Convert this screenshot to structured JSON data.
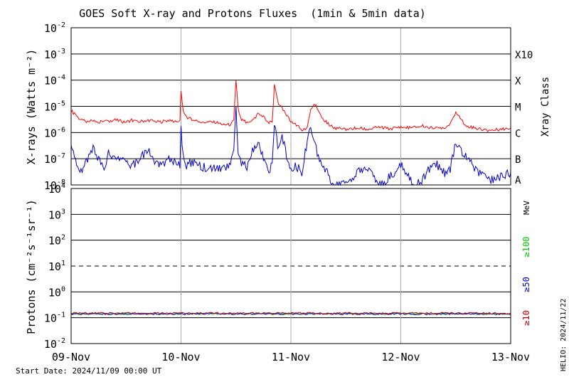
{
  "chart_data": [
    {
      "panel": "xray",
      "type": "line",
      "title": "GOES Soft X-ray and Protons Fluxes  (1min & 5min data)",
      "ylabel": "X-rays (Watts m⁻²)",
      "yscale": "log",
      "ylim": [
        1e-08,
        0.01
      ],
      "ytick_labels": [
        {
          "base": "10",
          "exp": "-2",
          "value": 0.01
        },
        {
          "base": "10",
          "exp": "-3",
          "value": 0.001
        },
        {
          "base": "10",
          "exp": "-4",
          "value": 0.0001
        },
        {
          "base": "10",
          "exp": "-5",
          "value": 1e-05
        },
        {
          "base": "10",
          "exp": "-6",
          "value": 1e-06
        },
        {
          "base": "10",
          "exp": "-7",
          "value": 1e-07
        },
        {
          "base": "10",
          "exp": "-8",
          "value": 1e-08
        }
      ],
      "class_label_title": "Xray Class",
      "class_labels": [
        {
          "label": "X10",
          "value": 0.001
        },
        {
          "label": "X",
          "value": 0.0001
        },
        {
          "label": "M",
          "value": 1e-05
        },
        {
          "label": "C",
          "value": 1e-06
        },
        {
          "label": "B",
          "value": 1e-07
        },
        {
          "label": "A",
          "value": 1e-08
        }
      ],
      "hlines": [
        0.001,
        0.0001,
        1e-05,
        1e-06,
        1e-07
      ],
      "series": [
        {
          "color": "#ff0000",
          "x": [
            0,
            0.03,
            0.06,
            0.1,
            0.15,
            0.2,
            0.25,
            0.3,
            0.35,
            0.4,
            0.5,
            0.55,
            0.6,
            0.7,
            0.8,
            0.9,
            0.95,
            0.99,
            1.0,
            1.02,
            1.05,
            1.1,
            1.2,
            1.3,
            1.4,
            1.45,
            1.48,
            1.5,
            1.52,
            1.55,
            1.6,
            1.65,
            1.7,
            1.75,
            1.8,
            1.83,
            1.85,
            1.88,
            1.92,
            1.97,
            2.0,
            2.05,
            2.1,
            2.15,
            2.18,
            2.2,
            2.23,
            2.25,
            2.3,
            2.35,
            2.4,
            2.5,
            2.6,
            2.7,
            2.8,
            2.9,
            3.0,
            3.1,
            3.2,
            3.3,
            3.4,
            3.45,
            3.5,
            3.55,
            3.6,
            3.7,
            3.8,
            3.9,
            4.0
          ],
          "values": [
            7e-06,
            5e-06,
            4e-06,
            3e-06,
            2.5e-06,
            3e-06,
            2.5e-06,
            3e-06,
            2.5e-06,
            3e-06,
            2.5e-06,
            3e-06,
            2.5e-06,
            3e-06,
            2.5e-06,
            3e-06,
            2.5e-06,
            3e-06,
            4e-05,
            6e-06,
            4e-06,
            3e-06,
            2.5e-06,
            2.5e-06,
            2e-06,
            2e-06,
            3e-06,
            0.0001,
            8e-06,
            3e-06,
            2.5e-06,
            3e-06,
            5e-06,
            4e-06,
            2.5e-06,
            2.5e-06,
            7e-05,
            1.5e-05,
            8e-06,
            4e-06,
            2.5e-06,
            2e-06,
            1.2e-06,
            1.5e-06,
            8e-06,
            1e-05,
            1.2e-05,
            6e-06,
            3e-06,
            2e-06,
            1.5e-06,
            1.3e-06,
            1.5e-06,
            1.3e-06,
            1.6e-06,
            1.4e-06,
            1.6e-06,
            1.5e-06,
            1.8e-06,
            1.4e-06,
            1.6e-06,
            2e-06,
            6e-06,
            3e-06,
            1.8e-06,
            1.4e-06,
            1.2e-06,
            1.3e-06,
            1.5e-06
          ]
        },
        {
          "color": "#0000cc",
          "x": [
            0,
            0.03,
            0.06,
            0.1,
            0.15,
            0.2,
            0.25,
            0.3,
            0.35,
            0.4,
            0.5,
            0.55,
            0.6,
            0.7,
            0.8,
            0.9,
            0.95,
            0.99,
            1.0,
            1.02,
            1.05,
            1.1,
            1.2,
            1.3,
            1.4,
            1.45,
            1.48,
            1.5,
            1.52,
            1.55,
            1.6,
            1.65,
            1.7,
            1.75,
            1.8,
            1.83,
            1.85,
            1.88,
            1.92,
            1.97,
            2.0,
            2.05,
            2.1,
            2.15,
            2.18,
            2.2,
            2.23,
            2.25,
            2.3,
            2.35,
            2.4,
            2.5,
            2.6,
            2.7,
            2.8,
            2.9,
            3.0,
            3.1,
            3.2,
            3.3,
            3.4,
            3.45,
            3.5,
            3.55,
            3.6,
            3.7,
            3.8,
            3.9,
            4.0
          ],
          "values": [
            3e-07,
            1e-07,
            5e-08,
            4e-08,
            1e-07,
            3e-07,
            1e-07,
            5e-08,
            2e-07,
            8e-08,
            1e-07,
            5e-08,
            8e-08,
            2e-07,
            5e-08,
            1e-07,
            8e-08,
            5e-08,
            1.5e-06,
            1e-07,
            5e-08,
            8e-08,
            5e-08,
            4e-08,
            4e-08,
            5e-08,
            2e-07,
            8e-06,
            2e-07,
            6e-08,
            5e-08,
            2e-07,
            4e-07,
            1e-07,
            4e-08,
            5e-08,
            2e-06,
            3e-07,
            8e-07,
            1e-07,
            5e-08,
            5e-08,
            3e-08,
            5e-07,
            1.5e-06,
            8e-07,
            3e-07,
            1e-07,
            5e-08,
            2e-08,
            1e-08,
            1e-08,
            3e-08,
            5e-08,
            1e-08,
            2e-08,
            6e-08,
            1.2e-08,
            1.5e-08,
            8e-08,
            3e-08,
            4e-08,
            4e-07,
            2e-07,
            1e-07,
            3e-08,
            1.5e-08,
            2e-08,
            3e-08
          ]
        }
      ]
    },
    {
      "panel": "protons",
      "type": "line",
      "ylabel": "Protons (cm⁻²s⁻¹sr⁻¹)",
      "yscale": "log",
      "ylim": [
        0.01,
        10000
      ],
      "ytick_labels": [
        {
          "base": "10",
          "exp": "4",
          "value": 10000
        },
        {
          "base": "10",
          "exp": "3",
          "value": 1000
        },
        {
          "base": "10",
          "exp": "2",
          "value": 100
        },
        {
          "base": "10",
          "exp": "1",
          "value": 10
        },
        {
          "base": "10",
          "exp": "0",
          "value": 1
        },
        {
          "base": "10",
          "exp": "-1",
          "value": 0.1
        },
        {
          "base": "10",
          "exp": "-2",
          "value": 0.01
        }
      ],
      "hlines": [
        1000,
        100,
        1,
        0.1
      ],
      "dashed_hline": 10,
      "unit_label": "MeV",
      "series": [
        {
          "name": "≥100",
          "color": "#00cc00",
          "value": 0.14
        },
        {
          "name": "≥50",
          "color": "#0000cc",
          "value": 0.14
        },
        {
          "name": "≥10",
          "color": "#cc0000",
          "value": 0.15
        }
      ]
    }
  ],
  "x_axis": {
    "xlim": [
      0,
      4
    ],
    "categories": [
      "09-Nov",
      "10-Nov",
      "11-Nov",
      "12-Nov",
      "13-Nov"
    ]
  },
  "footer": {
    "start_date": "Start Date: 2024/11/09 00:00 UT",
    "source": "HELIO: 2024/11/22"
  }
}
